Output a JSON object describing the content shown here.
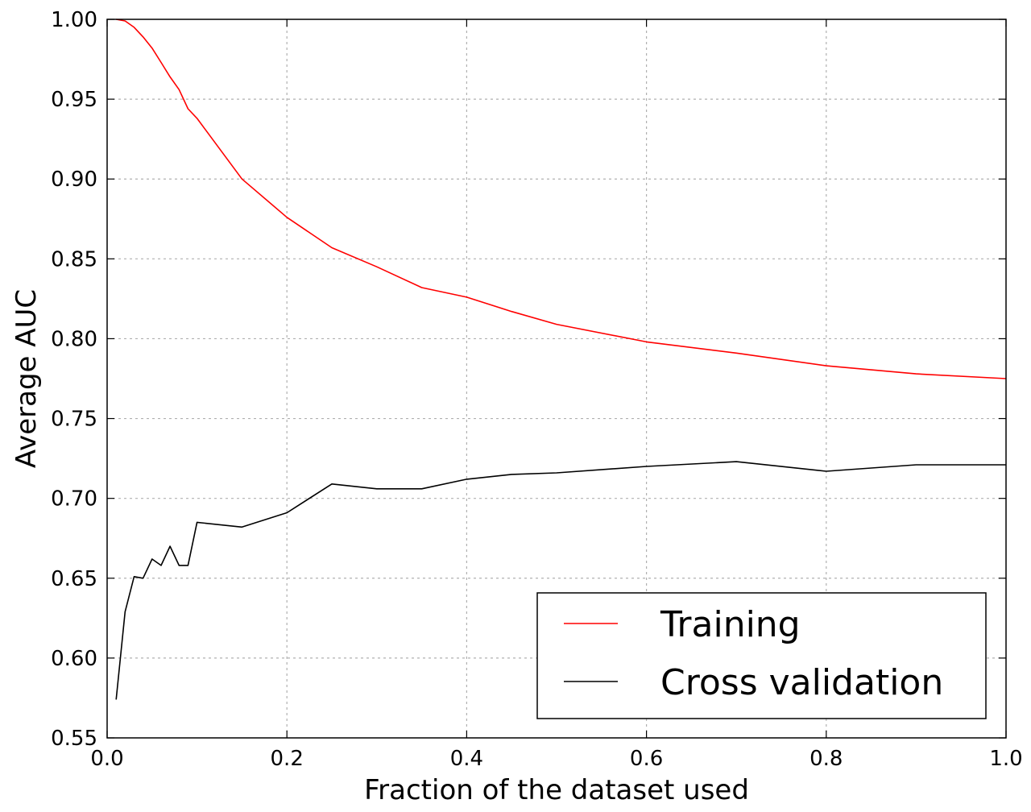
{
  "chart_data": {
    "type": "line",
    "title": "",
    "xlabel": "Fraction of the dataset used",
    "ylabel": "Average AUC",
    "xlim": [
      0.0,
      1.0
    ],
    "ylim": [
      0.55,
      1.0
    ],
    "xticks": [
      "0.0",
      "0.2",
      "0.4",
      "0.6",
      "0.8",
      "1.0"
    ],
    "yticks": [
      "0.55",
      "0.60",
      "0.65",
      "0.70",
      "0.75",
      "0.80",
      "0.85",
      "0.90",
      "0.95",
      "1.00"
    ],
    "grid": true,
    "legend_position": "lower-right",
    "series": [
      {
        "name": "Training",
        "color": "#ff0000",
        "x": [
          0.01,
          0.02,
          0.03,
          0.04,
          0.05,
          0.06,
          0.07,
          0.08,
          0.09,
          0.1,
          0.15,
          0.2,
          0.25,
          0.3,
          0.35,
          0.4,
          0.45,
          0.5,
          0.6,
          0.7,
          0.8,
          0.9,
          1.0
        ],
        "y": [
          1.0,
          0.999,
          0.995,
          0.989,
          0.982,
          0.973,
          0.964,
          0.956,
          0.944,
          0.938,
          0.9,
          0.876,
          0.857,
          0.845,
          0.832,
          0.826,
          0.817,
          0.809,
          0.798,
          0.791,
          0.783,
          0.778,
          0.775
        ]
      },
      {
        "name": "Cross validation",
        "color": "#000000",
        "x": [
          0.01,
          0.02,
          0.03,
          0.04,
          0.05,
          0.06,
          0.07,
          0.08,
          0.09,
          0.1,
          0.15,
          0.2,
          0.25,
          0.3,
          0.35,
          0.4,
          0.45,
          0.5,
          0.6,
          0.7,
          0.8,
          0.9,
          1.0
        ],
        "y": [
          0.574,
          0.629,
          0.651,
          0.65,
          0.662,
          0.658,
          0.67,
          0.658,
          0.658,
          0.685,
          0.682,
          0.691,
          0.709,
          0.706,
          0.706,
          0.712,
          0.715,
          0.716,
          0.72,
          0.723,
          0.717,
          0.721,
          0.721
        ]
      }
    ]
  }
}
